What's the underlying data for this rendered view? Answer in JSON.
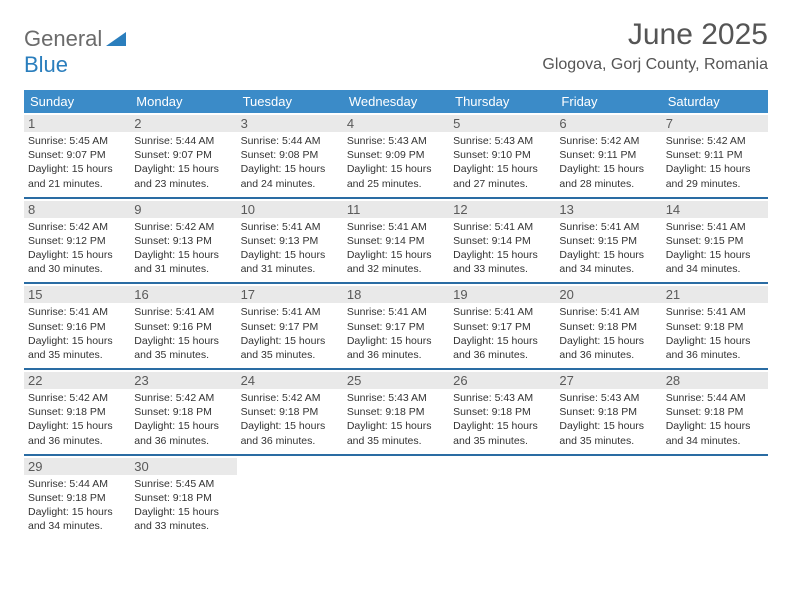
{
  "brand": {
    "name1": "General",
    "name2": "Blue"
  },
  "title": "June 2025",
  "location": "Glogova, Gorj County, Romania",
  "header_bg": "#3b8bc8",
  "divider_color": "#2a6ca3",
  "daynum_bg": "#e9e9e9",
  "weekdays": [
    "Sunday",
    "Monday",
    "Tuesday",
    "Wednesday",
    "Thursday",
    "Friday",
    "Saturday"
  ],
  "weeks": [
    [
      {
        "n": "1",
        "sr": "5:45 AM",
        "ss": "9:07 PM",
        "dl": "15 hours and 21 minutes."
      },
      {
        "n": "2",
        "sr": "5:44 AM",
        "ss": "9:07 PM",
        "dl": "15 hours and 23 minutes."
      },
      {
        "n": "3",
        "sr": "5:44 AM",
        "ss": "9:08 PM",
        "dl": "15 hours and 24 minutes."
      },
      {
        "n": "4",
        "sr": "5:43 AM",
        "ss": "9:09 PM",
        "dl": "15 hours and 25 minutes."
      },
      {
        "n": "5",
        "sr": "5:43 AM",
        "ss": "9:10 PM",
        "dl": "15 hours and 27 minutes."
      },
      {
        "n": "6",
        "sr": "5:42 AM",
        "ss": "9:11 PM",
        "dl": "15 hours and 28 minutes."
      },
      {
        "n": "7",
        "sr": "5:42 AM",
        "ss": "9:11 PM",
        "dl": "15 hours and 29 minutes."
      }
    ],
    [
      {
        "n": "8",
        "sr": "5:42 AM",
        "ss": "9:12 PM",
        "dl": "15 hours and 30 minutes."
      },
      {
        "n": "9",
        "sr": "5:42 AM",
        "ss": "9:13 PM",
        "dl": "15 hours and 31 minutes."
      },
      {
        "n": "10",
        "sr": "5:41 AM",
        "ss": "9:13 PM",
        "dl": "15 hours and 31 minutes."
      },
      {
        "n": "11",
        "sr": "5:41 AM",
        "ss": "9:14 PM",
        "dl": "15 hours and 32 minutes."
      },
      {
        "n": "12",
        "sr": "5:41 AM",
        "ss": "9:14 PM",
        "dl": "15 hours and 33 minutes."
      },
      {
        "n": "13",
        "sr": "5:41 AM",
        "ss": "9:15 PM",
        "dl": "15 hours and 34 minutes."
      },
      {
        "n": "14",
        "sr": "5:41 AM",
        "ss": "9:15 PM",
        "dl": "15 hours and 34 minutes."
      }
    ],
    [
      {
        "n": "15",
        "sr": "5:41 AM",
        "ss": "9:16 PM",
        "dl": "15 hours and 35 minutes."
      },
      {
        "n": "16",
        "sr": "5:41 AM",
        "ss": "9:16 PM",
        "dl": "15 hours and 35 minutes."
      },
      {
        "n": "17",
        "sr": "5:41 AM",
        "ss": "9:17 PM",
        "dl": "15 hours and 35 minutes."
      },
      {
        "n": "18",
        "sr": "5:41 AM",
        "ss": "9:17 PM",
        "dl": "15 hours and 36 minutes."
      },
      {
        "n": "19",
        "sr": "5:41 AM",
        "ss": "9:17 PM",
        "dl": "15 hours and 36 minutes."
      },
      {
        "n": "20",
        "sr": "5:41 AM",
        "ss": "9:18 PM",
        "dl": "15 hours and 36 minutes."
      },
      {
        "n": "21",
        "sr": "5:41 AM",
        "ss": "9:18 PM",
        "dl": "15 hours and 36 minutes."
      }
    ],
    [
      {
        "n": "22",
        "sr": "5:42 AM",
        "ss": "9:18 PM",
        "dl": "15 hours and 36 minutes."
      },
      {
        "n": "23",
        "sr": "5:42 AM",
        "ss": "9:18 PM",
        "dl": "15 hours and 36 minutes."
      },
      {
        "n": "24",
        "sr": "5:42 AM",
        "ss": "9:18 PM",
        "dl": "15 hours and 36 minutes."
      },
      {
        "n": "25",
        "sr": "5:43 AM",
        "ss": "9:18 PM",
        "dl": "15 hours and 35 minutes."
      },
      {
        "n": "26",
        "sr": "5:43 AM",
        "ss": "9:18 PM",
        "dl": "15 hours and 35 minutes."
      },
      {
        "n": "27",
        "sr": "5:43 AM",
        "ss": "9:18 PM",
        "dl": "15 hours and 35 minutes."
      },
      {
        "n": "28",
        "sr": "5:44 AM",
        "ss": "9:18 PM",
        "dl": "15 hours and 34 minutes."
      }
    ],
    [
      {
        "n": "29",
        "sr": "5:44 AM",
        "ss": "9:18 PM",
        "dl": "15 hours and 34 minutes."
      },
      {
        "n": "30",
        "sr": "5:45 AM",
        "ss": "9:18 PM",
        "dl": "15 hours and 33 minutes."
      },
      null,
      null,
      null,
      null,
      null
    ]
  ],
  "labels": {
    "sunrise": "Sunrise: ",
    "sunset": "Sunset: ",
    "daylight": "Daylight: "
  }
}
